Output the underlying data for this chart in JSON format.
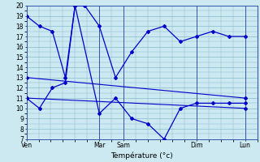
{
  "xlabel": "Température (°c)",
  "bg_color": "#cce8f0",
  "line_color": "#0000cc",
  "grid_color": "#88bbcc",
  "ylim": [
    7,
    20
  ],
  "xlim": [
    0,
    14
  ],
  "l1x": [
    0,
    0.8,
    1.6,
    2.4,
    3.0,
    3.6,
    4.5,
    5.5,
    6.5,
    7.5,
    8.5,
    9.5,
    10.5,
    11.5,
    12.5,
    13.5
  ],
  "l1y": [
    19,
    18,
    17.5,
    13,
    20,
    20,
    18,
    13,
    15.5,
    17.5,
    18,
    16.5,
    17,
    17.5,
    17,
    17
  ],
  "l2x": [
    0,
    0.8,
    1.6,
    2.4,
    3.0,
    4.5,
    5.5,
    6.5,
    7.5,
    8.5,
    9.5,
    10.5,
    11.5,
    12.5,
    13.5
  ],
  "l2y": [
    11,
    10,
    12,
    12.5,
    20,
    9.5,
    11,
    9,
    8.5,
    7,
    10,
    10.5,
    10.5,
    10.5,
    10.5
  ],
  "l3x": [
    0,
    13.5
  ],
  "l3y": [
    13,
    11
  ],
  "l4x": [
    0,
    13.5
  ],
  "l4y": [
    11,
    10
  ],
  "xtick_positions": [
    0,
    4.5,
    6.0,
    10.5,
    13.5
  ],
  "xtick_labels": [
    "Ven",
    "Mar",
    "Sam",
    "Dim",
    "Lun"
  ],
  "vlines": [
    4.5,
    6.0,
    10.5,
    13.5
  ]
}
